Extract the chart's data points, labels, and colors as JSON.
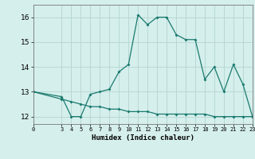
{
  "xlabel": "Humidex (Indice chaleur)",
  "background_color": "#d5efec",
  "grid_color": "#b8d8d4",
  "line_color": "#1a7a6e",
  "xlim": [
    0,
    23
  ],
  "ylim": [
    11.7,
    16.5
  ],
  "xticks": [
    0,
    3,
    4,
    5,
    6,
    7,
    8,
    9,
    10,
    11,
    12,
    13,
    14,
    15,
    16,
    17,
    18,
    19,
    20,
    21,
    22,
    23
  ],
  "yticks": [
    12,
    13,
    14,
    15,
    16
  ],
  "line1_x": [
    0,
    3,
    4,
    5,
    6,
    7,
    8,
    9,
    10,
    11,
    12,
    13,
    14,
    15,
    16,
    17,
    18,
    19,
    20,
    21,
    22,
    23
  ],
  "line1_y": [
    13.0,
    12.8,
    12.0,
    12.0,
    12.9,
    13.0,
    13.1,
    13.8,
    14.1,
    16.1,
    15.7,
    16.0,
    16.0,
    15.3,
    15.1,
    15.1,
    13.5,
    14.0,
    13.0,
    14.1,
    13.3,
    12.0
  ],
  "line2_x": [
    0,
    3,
    4,
    5,
    6,
    7,
    8,
    9,
    10,
    11,
    12,
    13,
    14,
    15,
    16,
    17,
    18,
    19,
    20,
    21,
    22,
    23
  ],
  "line2_y": [
    13.0,
    12.7,
    12.6,
    12.5,
    12.4,
    12.4,
    12.3,
    12.3,
    12.2,
    12.2,
    12.2,
    12.1,
    12.1,
    12.1,
    12.1,
    12.1,
    12.1,
    12.0,
    12.0,
    12.0,
    12.0,
    12.0
  ]
}
